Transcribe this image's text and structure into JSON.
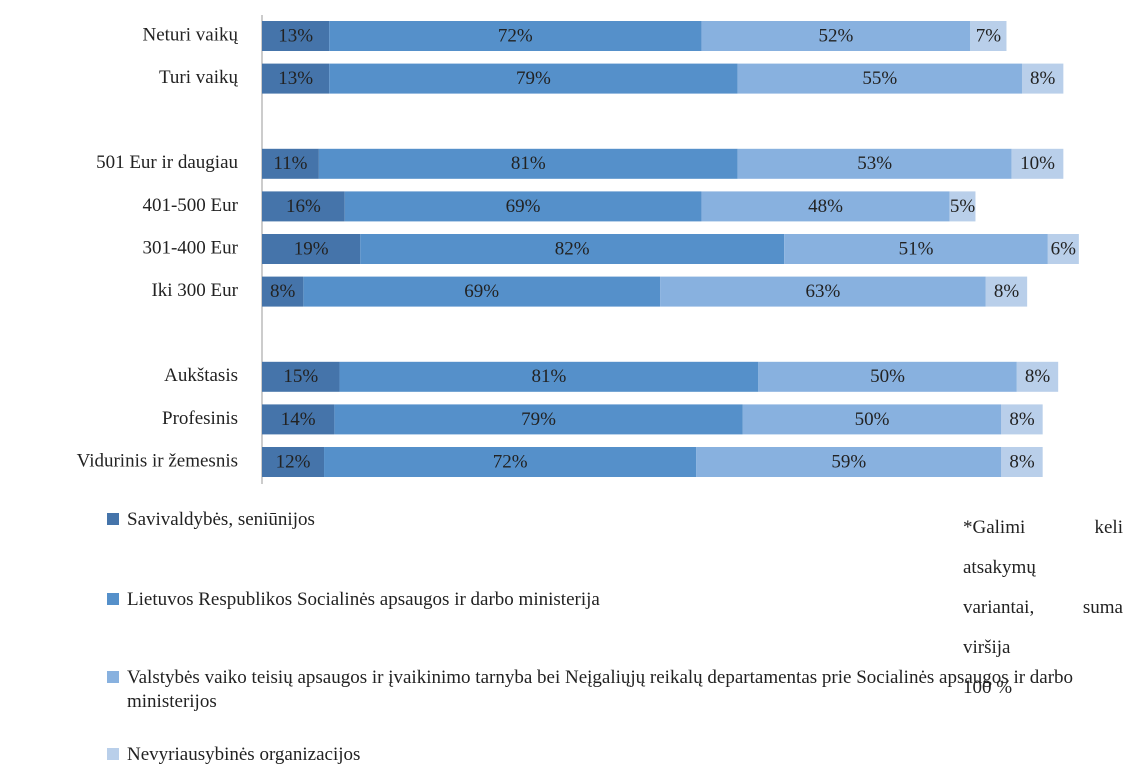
{
  "chart_data": {
    "type": "stacked-bar-horizontal",
    "categories": [
      "Neturi vaikų",
      "Turi vaikų",
      null,
      "501 Eur ir daugiau",
      "401-500 Eur",
      "301-400 Eur",
      "Iki 300 Eur",
      null,
      "Aukštasis",
      "Profesinis",
      "Vidurinis ir žemesnis"
    ],
    "series": [
      {
        "name": "Savivaldybės, seniūnijos",
        "color": "#4574aa",
        "values": [
          13,
          13,
          null,
          11,
          16,
          19,
          8,
          null,
          15,
          14,
          12
        ],
        "value_labels": [
          "13%",
          "13%",
          null,
          "11%",
          "16%",
          "19%",
          "8%",
          null,
          "15%",
          "14%",
          "12%"
        ]
      },
      {
        "name": "Lietuvos Respublikos Socialinės apsaugos ir darbo ministerija",
        "color": "#5590ca",
        "values": [
          72,
          79,
          null,
          81,
          69,
          82,
          69,
          null,
          81,
          79,
          72
        ],
        "value_labels": [
          "72%",
          "79%",
          null,
          "81%",
          "69%",
          "82%",
          "69%",
          null,
          "81%",
          "79%",
          "72%"
        ]
      },
      {
        "name": "Valstybės vaiko teisių apsaugos ir įvaikinimo tarnyba bei Neįgaliųjų reikalų departamentas prie Socialinės apsaugos ir darbo ministerijos",
        "color": "#88b1df",
        "values": [
          52,
          55,
          null,
          53,
          48,
          51,
          63,
          null,
          50,
          50,
          59
        ],
        "value_labels": [
          "52%",
          "55%",
          null,
          "53%",
          "48%",
          "51%",
          "63%",
          null,
          "50%",
          "50%",
          "59%"
        ]
      },
      {
        "name": "Nevyriausybinės organizacijos",
        "color": "#b9cfea",
        "values": [
          7,
          8,
          null,
          10,
          5,
          6,
          8,
          null,
          8,
          8,
          8
        ],
        "value_labels": [
          "7%",
          "8%",
          null,
          "10%",
          "5%",
          "6%",
          "8%",
          null,
          "8%",
          "8%",
          "8%"
        ]
      }
    ],
    "note": [
      "*Galimi keli atsakymų",
      "variantai, suma viršija",
      "100 %"
    ]
  }
}
